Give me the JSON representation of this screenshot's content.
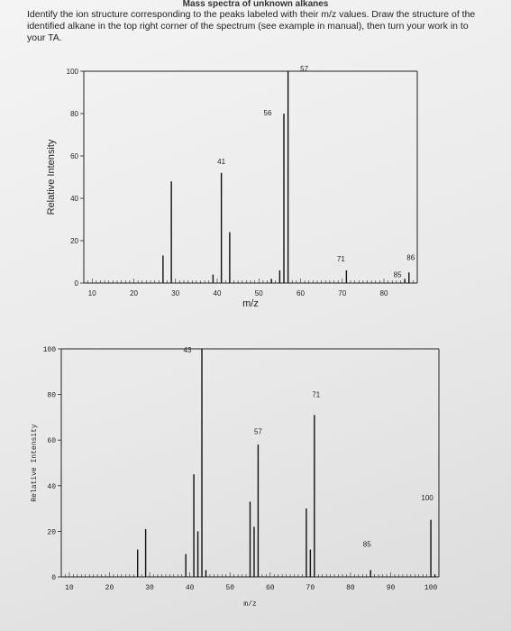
{
  "header": {
    "title": "Mass spectra of unknown alkanes",
    "instructions": "Identify the ion structure corresponding to the peaks labeled with their m/z values. Draw the structure of the identified alkane in the top right corner of the spectrum (see example in manual), then turn your work in to your TA."
  },
  "chart_data": [
    {
      "type": "bar",
      "title": "",
      "xlabel": "m/z",
      "ylabel": "Relative Intensity",
      "xlim": [
        8,
        88
      ],
      "ylim": [
        0,
        100
      ],
      "x_ticks": [
        10,
        20,
        30,
        40,
        50,
        60,
        70,
        80
      ],
      "y_ticks": [
        0,
        20,
        40,
        60,
        80,
        100
      ],
      "x": [
        27,
        29,
        39,
        41,
        43,
        53,
        55,
        56,
        57,
        71,
        85,
        86
      ],
      "values": [
        13,
        48,
        4,
        52,
        24,
        2,
        6,
        80,
        100,
        6,
        2,
        5
      ],
      "peak_labels": [
        {
          "x": 41,
          "label": "41"
        },
        {
          "x": 56,
          "label": "56"
        },
        {
          "x": 57,
          "label": "57"
        },
        {
          "x": 71,
          "label": "71"
        },
        {
          "x": 85,
          "label": "85"
        },
        {
          "x": 86,
          "label": "86"
        }
      ]
    },
    {
      "type": "bar",
      "title": "",
      "xlabel": "m/z",
      "ylabel": "Relative Intensity",
      "xlim": [
        8,
        102
      ],
      "ylim": [
        0,
        100
      ],
      "x_ticks": [
        10,
        20,
        30,
        40,
        50,
        60,
        70,
        80,
        90,
        100
      ],
      "y_ticks": [
        0,
        20,
        40,
        60,
        80,
        100
      ],
      "x": [
        27,
        29,
        39,
        41,
        42,
        43,
        44,
        55,
        56,
        57,
        69,
        70,
        71,
        85,
        100,
        101
      ],
      "values": [
        12,
        21,
        10,
        45,
        20,
        100,
        3,
        33,
        22,
        58,
        30,
        12,
        71,
        3,
        25,
        1
      ],
      "peak_labels": [
        {
          "x": 43,
          "label": "43"
        },
        {
          "x": 57,
          "label": "57"
        },
        {
          "x": 71,
          "label": "71"
        },
        {
          "x": 85,
          "label": "85"
        },
        {
          "x": 100,
          "label": "100"
        }
      ]
    }
  ]
}
